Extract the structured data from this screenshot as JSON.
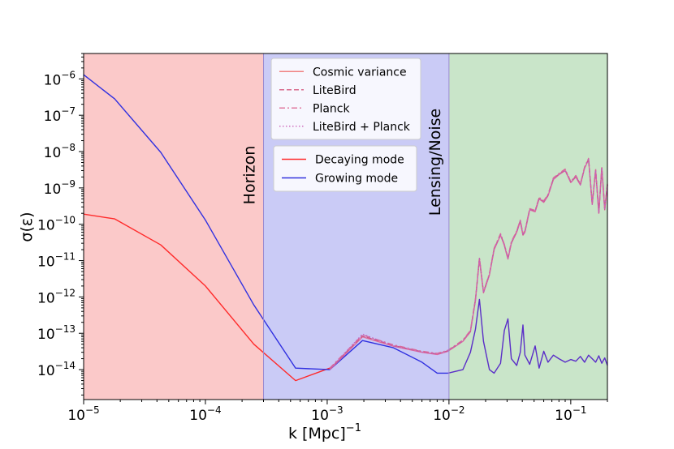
{
  "chart_data": {
    "type": "line",
    "xlabel": "k [Mpc]",
    "xlabel_exp": "−1",
    "ylabel": "σ(ε)",
    "xscale": "log",
    "yscale": "log",
    "xlim": [
      1e-05,
      0.2
    ],
    "ylim": [
      1.5e-15,
      5e-06
    ],
    "grid": false,
    "x_ticks": [
      {
        "value": 1e-05,
        "base": "10",
        "exp": "−5"
      },
      {
        "value": 0.0001,
        "base": "10",
        "exp": "−4"
      },
      {
        "value": 0.001,
        "base": "10",
        "exp": "−3"
      },
      {
        "value": 0.01,
        "base": "10",
        "exp": "−2"
      },
      {
        "value": 0.1,
        "base": "10",
        "exp": "−1"
      }
    ],
    "y_ticks": [
      {
        "value": 1e-14,
        "base": "10",
        "exp": "−14"
      },
      {
        "value": 1e-13,
        "base": "10",
        "exp": "−13"
      },
      {
        "value": 1e-12,
        "base": "10",
        "exp": "−12"
      },
      {
        "value": 1e-11,
        "base": "10",
        "exp": "−11"
      },
      {
        "value": 1e-10,
        "base": "10",
        "exp": "−10"
      },
      {
        "value": 1e-09,
        "base": "10",
        "exp": "−9"
      },
      {
        "value": 1e-08,
        "base": "10",
        "exp": "−8"
      },
      {
        "value": 1e-07,
        "base": "10",
        "exp": "−7"
      },
      {
        "value": 1e-06,
        "base": "10",
        "exp": "−6"
      }
    ],
    "regions": [
      {
        "x_start": 1e-05,
        "x_end": 0.0003,
        "color": "#fbc9c9"
      },
      {
        "x_start": 0.0003,
        "x_end": 0.01,
        "color": "#cacbf6"
      },
      {
        "x_start": 0.01,
        "x_end": 0.2,
        "color": "#c9e5c9"
      }
    ],
    "annotations": [
      {
        "text": "Horizon",
        "x": 0.0003,
        "rotation": -90
      },
      {
        "text": "Lensing/Noise",
        "x": 0.01,
        "rotation": -90
      }
    ],
    "legend_noise": {
      "placement": "top-center",
      "entries": [
        {
          "label": "Cosmic variance",
          "dash": "solid",
          "color": "#f08080"
        },
        {
          "label": "LiteBird",
          "dash": "dashed",
          "color": "#d86a8c"
        },
        {
          "label": "Planck",
          "dash": "dashdot",
          "color": "#e07aa0"
        },
        {
          "label": "LiteBird + Planck",
          "dash": "dotted",
          "color": "#d070c0"
        }
      ]
    },
    "legend_mode": {
      "placement": "center",
      "entries": [
        {
          "label": "Decaying mode",
          "color": "#ff2a2a"
        },
        {
          "label": "Growing mode",
          "color": "#3333dd"
        }
      ]
    },
    "series": [
      {
        "name": "Decaying mode",
        "color": "#ff2a2a",
        "x": [
          1e-05,
          1.8e-05,
          4.3e-05,
          0.0001,
          0.00025,
          0.00055,
          0.00105
        ],
        "y": [
          1.9e-10,
          1.4e-10,
          2.7e-11,
          2e-12,
          5e-14,
          5e-15,
          1.1e-14
        ]
      },
      {
        "name": "Growing mode",
        "color": "#3030e0",
        "x": [
          1e-05,
          1.8e-05,
          4.3e-05,
          0.0001,
          0.00025,
          0.00055,
          0.00105,
          0.00195,
          0.0035,
          0.006,
          0.008,
          0.0098
        ],
        "y": [
          1.3e-06,
          2.8e-07,
          9.5e-09,
          1.3e-10,
          6e-13,
          1.1e-14,
          1e-14,
          6.3e-14,
          4e-14,
          1.6e-14,
          8e-15,
          8e-15
        ]
      },
      {
        "name": "Growing mode (lensing/noise range)",
        "color": "#5a2dc8",
        "x": [
          0.0098,
          0.013,
          0.015,
          0.0165,
          0.0178,
          0.0192,
          0.0215,
          0.0235,
          0.0265,
          0.0285,
          0.0305,
          0.0325,
          0.036,
          0.0385,
          0.0405,
          0.042,
          0.046,
          0.051,
          0.055,
          0.06,
          0.065,
          0.072,
          0.08,
          0.09,
          0.1,
          0.11,
          0.12,
          0.13,
          0.14,
          0.15,
          0.16,
          0.17,
          0.18,
          0.19,
          0.2
        ],
        "y": [
          8e-15,
          1e-14,
          3e-14,
          1.3e-13,
          8.5e-13,
          6e-14,
          1e-14,
          8e-15,
          1.5e-14,
          1.2e-13,
          2.5e-13,
          2e-14,
          1.3e-14,
          3e-14,
          1.7e-13,
          2.5e-14,
          1.4e-14,
          4.5e-14,
          1.1e-14,
          3.2e-14,
          1.6e-14,
          2.5e-14,
          2e-14,
          1.6e-14,
          1.9e-14,
          1.7e-14,
          2.3e-14,
          1.6e-14,
          2.5e-14,
          2e-14,
          1.6e-14,
          2.4e-14,
          1.5e-14,
          2.1e-14,
          1.3e-14
        ]
      },
      {
        "name": "Cosmic variance",
        "color": "#e06a9a",
        "dash": "solid",
        "x": [
          0.00105,
          0.00195,
          0.0035,
          0.006,
          0.008,
          0.0098,
          0.013,
          0.015,
          0.0165,
          0.0178,
          0.0192,
          0.0215,
          0.0235,
          0.0265,
          0.0285,
          0.0305,
          0.0325,
          0.036,
          0.0385,
          0.0405,
          0.042,
          0.046,
          0.051,
          0.055,
          0.06,
          0.065,
          0.072,
          0.08,
          0.09,
          0.1,
          0.11,
          0.12,
          0.13,
          0.14,
          0.15,
          0.16,
          0.17,
          0.18,
          0.19,
          0.2
        ],
        "y": [
          1e-14,
          8e-14,
          4.4e-14,
          3e-14,
          2.6e-14,
          3.2e-14,
          6e-14,
          1.1e-13,
          8e-13,
          1.1e-11,
          1.3e-12,
          4e-12,
          2e-11,
          5e-11,
          2.6e-11,
          1.1e-11,
          3e-11,
          6e-11,
          1.2e-10,
          5e-11,
          6e-11,
          2.5e-10,
          2.2e-10,
          5e-10,
          4e-10,
          6e-10,
          1.7e-09,
          2.3e-09,
          3e-09,
          1.4e-09,
          2e-09,
          1.2e-09,
          3.5e-09,
          6e-09,
          3.5e-10,
          3e-09,
          2e-10,
          3.5e-09,
          2.5e-10,
          1.2e-09
        ]
      },
      {
        "name": "LiteBird",
        "color": "#c85a8a",
        "dash": "dashed",
        "x": [
          0.00105,
          0.00195,
          0.0035,
          0.006,
          0.008,
          0.0098,
          0.013,
          0.015,
          0.0165,
          0.0178,
          0.0192,
          0.0215,
          0.0235,
          0.0265,
          0.0285,
          0.0305,
          0.0325,
          0.036,
          0.0385,
          0.0405,
          0.042,
          0.046,
          0.051,
          0.055,
          0.06,
          0.065,
          0.072,
          0.08,
          0.09,
          0.1,
          0.11,
          0.12,
          0.13,
          0.14,
          0.15,
          0.16,
          0.17,
          0.18,
          0.19,
          0.2
        ],
        "y": [
          1.05e-14,
          8.5e-14,
          4.6e-14,
          3.1e-14,
          2.7e-14,
          3.3e-14,
          6.2e-14,
          1.15e-13,
          8.5e-13,
          1.15e-11,
          1.35e-12,
          4.2e-12,
          2.1e-11,
          5.2e-11,
          2.7e-11,
          1.15e-11,
          3.1e-11,
          6.3e-11,
          1.25e-10,
          5.2e-11,
          6.3e-11,
          2.6e-10,
          2.3e-10,
          5.2e-10,
          4.2e-10,
          6.3e-10,
          1.8e-09,
          2.4e-09,
          3.1e-09,
          1.45e-09,
          2.1e-09,
          1.25e-09,
          3.6e-09,
          6.2e-09,
          3.6e-10,
          3.1e-09,
          2.1e-10,
          3.6e-09,
          2.6e-10,
          1.25e-09
        ]
      },
      {
        "name": "Planck",
        "color": "#d86a9a",
        "dash": "dashdot",
        "x": [
          0.00105,
          0.00195,
          0.0035,
          0.006,
          0.008,
          0.0098,
          0.013,
          0.015,
          0.0165,
          0.0178,
          0.0192,
          0.0215,
          0.0235,
          0.0265,
          0.0285,
          0.0305,
          0.0325,
          0.036,
          0.0385,
          0.0405,
          0.042,
          0.046,
          0.051,
          0.055,
          0.06,
          0.065,
          0.072,
          0.08,
          0.09,
          0.1,
          0.11,
          0.12,
          0.13,
          0.14,
          0.15,
          0.16,
          0.17,
          0.18,
          0.19,
          0.2
        ],
        "y": [
          1.1e-14,
          9e-14,
          4.8e-14,
          3.2e-14,
          2.8e-14,
          3.4e-14,
          6.5e-14,
          1.2e-13,
          9e-13,
          1.2e-11,
          1.4e-12,
          4.4e-12,
          2.2e-11,
          5.5e-11,
          2.8e-11,
          1.2e-11,
          3.3e-11,
          6.6e-11,
          1.3e-10,
          5.5e-11,
          6.6e-11,
          2.7e-10,
          2.4e-10,
          5.5e-10,
          4.4e-10,
          6.6e-10,
          1.9e-09,
          2.5e-09,
          3.3e-09,
          1.5e-09,
          2.2e-09,
          1.3e-09,
          3.8e-09,
          6.5e-09,
          3.8e-10,
          3.3e-09,
          2.2e-10,
          3.8e-09,
          2.7e-10,
          1.3e-09
        ]
      },
      {
        "name": "LiteBird + Planck",
        "color": "#c060c0",
        "dash": "dotted",
        "x": [
          0.00105,
          0.00195,
          0.0035,
          0.006,
          0.008,
          0.0098,
          0.013,
          0.015,
          0.0165,
          0.0178,
          0.0192,
          0.0215,
          0.0235,
          0.0265,
          0.0285,
          0.0305,
          0.0325,
          0.036,
          0.0385,
          0.0405,
          0.042,
          0.046,
          0.051,
          0.055,
          0.06,
          0.065,
          0.072,
          0.08,
          0.09,
          0.1,
          0.11,
          0.12,
          0.13,
          0.14,
          0.15,
          0.16,
          0.17,
          0.18,
          0.19,
          0.2
        ],
        "y": [
          1.02e-14,
          9.5e-14,
          4.5e-14,
          3.05e-14,
          2.65e-14,
          3.25e-14,
          6.1e-14,
          1.12e-13,
          8.2e-13,
          1.12e-11,
          1.32e-12,
          4.1e-12,
          2.05e-11,
          5.1e-11,
          2.65e-11,
          1.12e-11,
          3.05e-11,
          6.1e-11,
          1.22e-10,
          5.1e-11,
          6.1e-11,
          2.55e-10,
          2.25e-10,
          5.1e-10,
          4.1e-10,
          6.1e-10,
          1.75e-09,
          2.35e-09,
          3.05e-09,
          1.42e-09,
          2.05e-09,
          1.22e-09,
          3.55e-09,
          6.1e-09,
          3.55e-10,
          3.05e-09,
          2.05e-10,
          3.55e-09,
          2.55e-10,
          1.22e-09
        ]
      }
    ]
  }
}
